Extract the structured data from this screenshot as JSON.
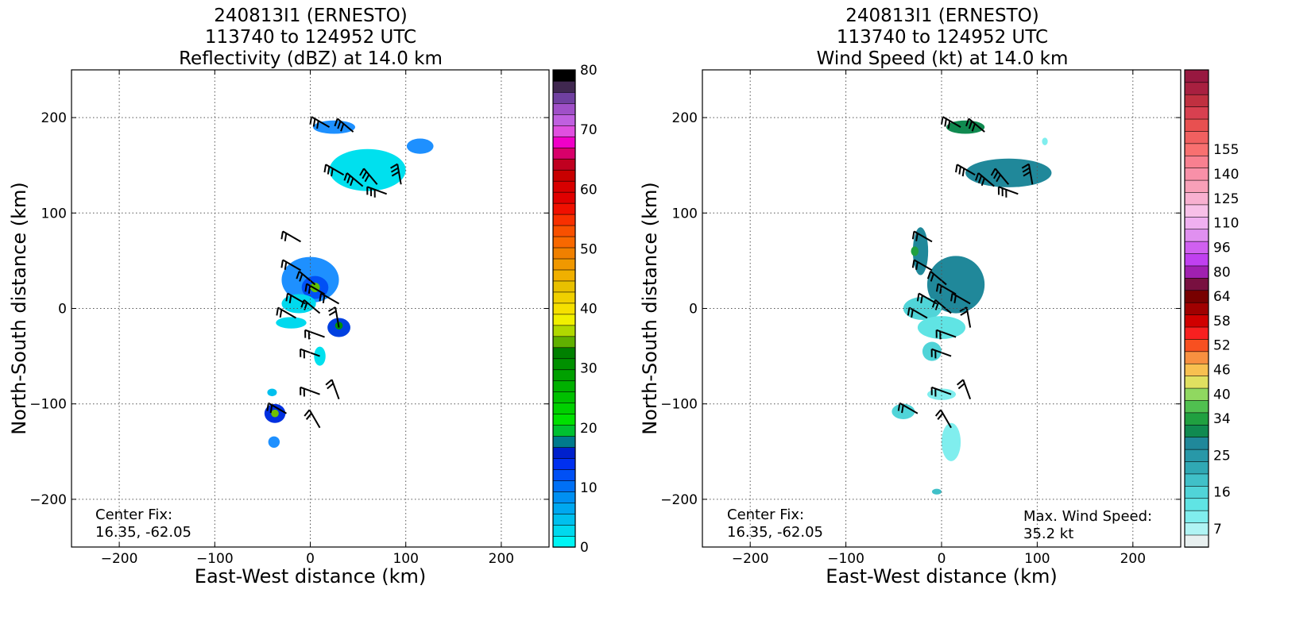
{
  "chart_data": [
    {
      "type": "scatter",
      "panel": "reflectivity",
      "title": [
        "240813I1 (ERNESTO)",
        "113740 to 124952 UTC",
        "Reflectivity (dBZ) at 14.0 km"
      ],
      "xlabel": "East-West distance (km)",
      "ylabel": "North-South distance (km)",
      "xlim": [
        -250,
        250
      ],
      "ylim": [
        -250,
        250
      ],
      "xticks": [
        -200,
        -100,
        0,
        100,
        200
      ],
      "yticks": [
        -200,
        -100,
        0,
        100,
        200
      ],
      "grid": true,
      "colorbar": {
        "min": 0,
        "max": 80,
        "step": 2.5,
        "tick_labels": [
          "0",
          "10",
          "20",
          "30",
          "40",
          "50",
          "60",
          "70",
          "80"
        ],
        "tick_values": [
          0,
          10,
          20,
          30,
          40,
          50,
          60,
          70,
          80
        ],
        "colors": [
          "#00f5f5",
          "#00d9ee",
          "#00c0ee",
          "#00a8f0",
          "#0090f2",
          "#0070f5",
          "#0050f5",
          "#0030f0",
          "#0020cc",
          "#007a8c",
          "#00c030",
          "#00e000",
          "#00d000",
          "#00c000",
          "#00b000",
          "#00a000",
          "#009000",
          "#008000",
          "#60b000",
          "#b0d800",
          "#f0f000",
          "#f5e000",
          "#f0d000",
          "#e8c000",
          "#f0b000",
          "#f09800",
          "#f08000",
          "#f86800",
          "#f85000",
          "#f83000",
          "#f01000",
          "#e00000",
          "#d80000",
          "#c80000",
          "#c00020",
          "#d8006a",
          "#f000c8",
          "#e050e0",
          "#c060e0",
          "#a050c8",
          "#7040a0",
          "#402850",
          "#000000"
        ]
      },
      "echo_regions": [
        {
          "x": 0,
          "y": 30,
          "rx": 30,
          "ry": 24,
          "color": "#1e90ff"
        },
        {
          "x": 5,
          "y": 22,
          "rx": 14,
          "ry": 12,
          "color": "#0050f5"
        },
        {
          "x": 5,
          "y": 22,
          "rx": 5,
          "ry": 5,
          "color": "#60c000"
        },
        {
          "x": -12,
          "y": 5,
          "rx": 18,
          "ry": 10,
          "color": "#00d9ee"
        },
        {
          "x": -20,
          "y": -15,
          "rx": 16,
          "ry": 6,
          "color": "#00d9ee"
        },
        {
          "x": 30,
          "y": -20,
          "rx": 12,
          "ry": 10,
          "color": "#0040e0"
        },
        {
          "x": 30,
          "y": -18,
          "rx": 4,
          "ry": 4,
          "color": "#009000"
        },
        {
          "x": 25,
          "y": 190,
          "rx": 22,
          "ry": 7,
          "color": "#1e90ff"
        },
        {
          "x": 60,
          "y": 145,
          "rx": 40,
          "ry": 22,
          "color": "#00e0ee"
        },
        {
          "x": 115,
          "y": 170,
          "rx": 14,
          "ry": 8,
          "color": "#1e90ff"
        },
        {
          "x": -37,
          "y": -110,
          "rx": 11,
          "ry": 10,
          "color": "#0030e0"
        },
        {
          "x": -37,
          "y": -110,
          "rx": 4,
          "ry": 4,
          "color": "#70c000"
        },
        {
          "x": -38,
          "y": -140,
          "rx": 6,
          "ry": 6,
          "color": "#1e90ff"
        },
        {
          "x": -40,
          "y": -88,
          "rx": 5,
          "ry": 4,
          "color": "#00c0ee"
        },
        {
          "x": 10,
          "y": -50,
          "rx": 6,
          "ry": 10,
          "color": "#00e0ee"
        }
      ],
      "annotations": [
        "Center Fix:",
        "16.35, -62.05"
      ]
    },
    {
      "type": "scatter",
      "panel": "wind_speed",
      "title": [
        "240813I1 (ERNESTO)",
        "113740 to 124952 UTC",
        "Wind Speed (kt) at 14.0 km"
      ],
      "xlabel": "East-West distance (km)",
      "ylabel": "North-South distance (km)",
      "xlim": [
        -250,
        250
      ],
      "ylim": [
        -250,
        250
      ],
      "xticks": [
        -200,
        -100,
        0,
        100,
        200
      ],
      "yticks": [
        -200,
        -100,
        0,
        100,
        200
      ],
      "grid": true,
      "colorbar": {
        "min": 3,
        "max": 160,
        "step": "irregular",
        "tick_labels": [
          "7",
          "16",
          "25",
          "34",
          "40",
          "46",
          "52",
          "58",
          "64",
          "80",
          "96",
          "110",
          "125",
          "140",
          "155"
        ],
        "tick_values": [
          7,
          16,
          25,
          34,
          40,
          46,
          52,
          58,
          64,
          80,
          96,
          110,
          125,
          140,
          155
        ],
        "colors": [
          "#e8f0f0",
          "#b0f4f4",
          "#80eeee",
          "#60e4e4",
          "#50d4d8",
          "#40c0c8",
          "#30a8b4",
          "#2898a8",
          "#20889a",
          "#108a50",
          "#20a040",
          "#50c050",
          "#90d860",
          "#e0e060",
          "#f8c050",
          "#f89040",
          "#f85020",
          "#f82020",
          "#d00000",
          "#a00000",
          "#780000",
          "#781040",
          "#a020b0",
          "#c040f0",
          "#d060f0",
          "#e090f0",
          "#f0b0f0",
          "#f8c0e8",
          "#f8b0d0",
          "#f8a0b8",
          "#f890a8",
          "#f88090",
          "#f87070",
          "#f06060",
          "#e85050",
          "#d84050",
          "#c03040",
          "#a82040",
          "#981840"
        ]
      },
      "echo_regions": [
        {
          "x": 15,
          "y": 25,
          "rx": 30,
          "ry": 30,
          "color": "#20889a"
        },
        {
          "x": -22,
          "y": 60,
          "rx": 8,
          "ry": 25,
          "color": "#20889a"
        },
        {
          "x": -28,
          "y": 60,
          "rx": 4,
          "ry": 5,
          "color": "#20a040"
        },
        {
          "x": -20,
          "y": 0,
          "rx": 20,
          "ry": 12,
          "color": "#50d4d8"
        },
        {
          "x": 0,
          "y": -20,
          "rx": 25,
          "ry": 12,
          "color": "#60e4e4"
        },
        {
          "x": -10,
          "y": -45,
          "rx": 10,
          "ry": 10,
          "color": "#50d4d8"
        },
        {
          "x": 25,
          "y": 190,
          "rx": 20,
          "ry": 7,
          "color": "#108a50"
        },
        {
          "x": 70,
          "y": 142,
          "rx": 45,
          "ry": 15,
          "color": "#20889a"
        },
        {
          "x": -40,
          "y": -108,
          "rx": 12,
          "ry": 8,
          "color": "#50d4d8"
        },
        {
          "x": 0,
          "y": -90,
          "rx": 15,
          "ry": 6,
          "color": "#80eeee"
        },
        {
          "x": 10,
          "y": -140,
          "rx": 10,
          "ry": 20,
          "color": "#80eeee"
        },
        {
          "x": -5,
          "y": -192,
          "rx": 5,
          "ry": 3,
          "color": "#40c0c8"
        },
        {
          "x": 108,
          "y": 175,
          "rx": 3,
          "ry": 4,
          "color": "#80eeee"
        }
      ],
      "annotations": [
        "Center Fix:",
        "16.35, -62.05",
        "Max. Wind Speed:",
        "35.2 kt"
      ]
    }
  ],
  "wind_barbs": [
    {
      "x": 20,
      "y": 190,
      "angle": -30,
      "barbs": 3
    },
    {
      "x": 45,
      "y": 185,
      "angle": -40,
      "barbs": 3
    },
    {
      "x": 35,
      "y": 140,
      "angle": -30,
      "barbs": 3
    },
    {
      "x": 55,
      "y": 128,
      "angle": -40,
      "barbs": 3
    },
    {
      "x": 70,
      "y": 130,
      "angle": -50,
      "barbs": 3
    },
    {
      "x": 80,
      "y": 120,
      "angle": -20,
      "barbs": 3
    },
    {
      "x": 95,
      "y": 130,
      "angle": -80,
      "barbs": 3
    },
    {
      "x": -10,
      "y": 70,
      "angle": -30,
      "barbs": 2
    },
    {
      "x": -10,
      "y": 40,
      "angle": -30,
      "barbs": 2
    },
    {
      "x": 5,
      "y": 25,
      "angle": -40,
      "barbs": 2
    },
    {
      "x": 15,
      "y": 15,
      "angle": -30,
      "barbs": 2
    },
    {
      "x": 30,
      "y": 5,
      "angle": -30,
      "barbs": 2
    },
    {
      "x": -5,
      "y": 5,
      "angle": -30,
      "barbs": 2
    },
    {
      "x": 10,
      "y": -5,
      "angle": -40,
      "barbs": 2
    },
    {
      "x": 30,
      "y": -20,
      "angle": -80,
      "barbs": 2
    },
    {
      "x": -15,
      "y": -10,
      "angle": -30,
      "barbs": 2
    },
    {
      "x": 15,
      "y": -30,
      "angle": -20,
      "barbs": 2
    },
    {
      "x": 10,
      "y": -50,
      "angle": -20,
      "barbs": 2
    },
    {
      "x": 10,
      "y": -90,
      "angle": -20,
      "barbs": 2
    },
    {
      "x": 30,
      "y": -95,
      "angle": -70,
      "barbs": 2
    },
    {
      "x": -25,
      "y": -110,
      "angle": -30,
      "barbs": 2
    },
    {
      "x": 10,
      "y": -125,
      "angle": -60,
      "barbs": 2
    }
  ]
}
